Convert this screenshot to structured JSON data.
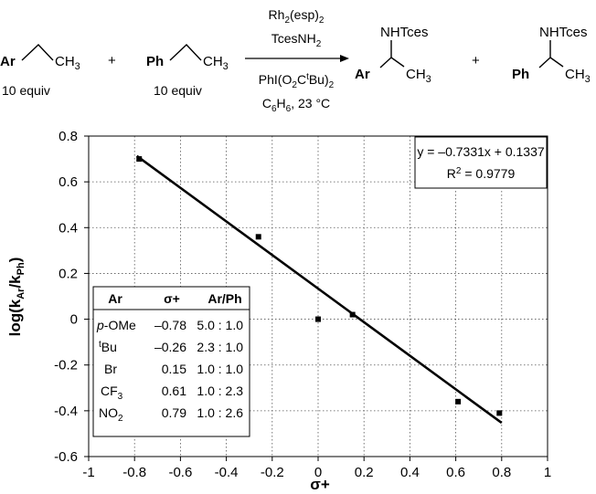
{
  "scheme": {
    "reactant1": {
      "aryl": "Ar",
      "alkyl": "CH",
      "alkyl_sub": "3",
      "equiv": "10 equiv"
    },
    "plus1": "+",
    "reactant2": {
      "aryl": "Ph",
      "alkyl": "CH",
      "alkyl_sub": "3",
      "equiv": "10 equiv"
    },
    "reagents_above": {
      "line1_a": "Rh",
      "line1_sub": "2",
      "line1_b": "(esp)",
      "line1_sub2": "2",
      "line2_a": "TcesNH",
      "line2_sub": "2"
    },
    "reagents_below": {
      "line1_a": "PhI(O",
      "line1_sub1": "2",
      "line1_b": "C",
      "line1_sup": "t",
      "line1_c": "Bu)",
      "line1_sub2": "2",
      "line2_a": "C",
      "line2_sub1": "6",
      "line2_b": "H",
      "line2_sub2": "6",
      "line2_c": ", 23 °C"
    },
    "product1": {
      "amine": "NHTces",
      "aryl": "Ar",
      "alkyl": "CH",
      "alkyl_sub": "3"
    },
    "plus2": "+",
    "product2": {
      "amine": "NHTces",
      "aryl": "Ph",
      "alkyl": "CH",
      "alkyl_sub": "3"
    }
  },
  "chart_data": {
    "type": "scatter",
    "xlabel": "σ+",
    "ylabel_a": "log(k",
    "ylabel_sub1": "Ar",
    "ylabel_b": "/k",
    "ylabel_sub2": "Ph",
    "ylabel_c": ")",
    "xlim": [
      -1,
      1
    ],
    "ylim": [
      -0.6,
      0.8
    ],
    "xticks": [
      -1,
      -0.8,
      -0.6,
      -0.4,
      -0.2,
      0,
      0.2,
      0.4,
      0.6,
      0.8,
      1
    ],
    "xtick_labels": [
      "-1",
      "-0.8",
      "-0.6",
      "-0.4",
      "-0.2",
      "0",
      "0.2",
      "0.4",
      "0.6",
      "0.8",
      "1"
    ],
    "yticks": [
      -0.6,
      -0.4,
      -0.2,
      0,
      0.2,
      0.4,
      0.6,
      0.8
    ],
    "ytick_labels": [
      "-0.6",
      "-0.4",
      "-0.2",
      "0",
      "0.2",
      "0.4",
      "0.6",
      "0.8"
    ],
    "grid": true,
    "points": [
      {
        "x": -0.78,
        "y": 0.7
      },
      {
        "x": -0.26,
        "y": 0.36
      },
      {
        "x": 0.0,
        "y": 0.0
      },
      {
        "x": 0.15,
        "y": 0.02
      },
      {
        "x": 0.61,
        "y": -0.36
      },
      {
        "x": 0.79,
        "y": -0.41
      }
    ],
    "fit": {
      "slope": -0.7331,
      "intercept": 0.1337,
      "x_range": [
        -0.79,
        0.8
      ]
    },
    "equation": "y = –0.7331x + 0.1337",
    "r2_a": "R",
    "r2_sup": "2",
    "r2_b": " = 0.9779",
    "table": {
      "headers": [
        "Ar",
        "σ+",
        "Ar/Ph"
      ],
      "rows": [
        {
          "ar_italic": "p",
          "ar_rest": "-OMe",
          "sigma": "–0.78",
          "ratio": "5.0 : 1.0"
        },
        {
          "ar_sup": "t",
          "ar_rest": "Bu",
          "sigma": "–0.26",
          "ratio": "2.3 : 1.0"
        },
        {
          "ar_rest": "Br",
          "sigma": "0.15",
          "ratio": "1.0 : 1.0"
        },
        {
          "ar_rest": "CF",
          "ar_sub": "3",
          "sigma": "0.61",
          "ratio": "1.0 : 2.3"
        },
        {
          "ar_rest": "NO",
          "ar_sub": "2",
          "sigma": "0.79",
          "ratio": "1.0 : 2.6"
        }
      ]
    }
  }
}
